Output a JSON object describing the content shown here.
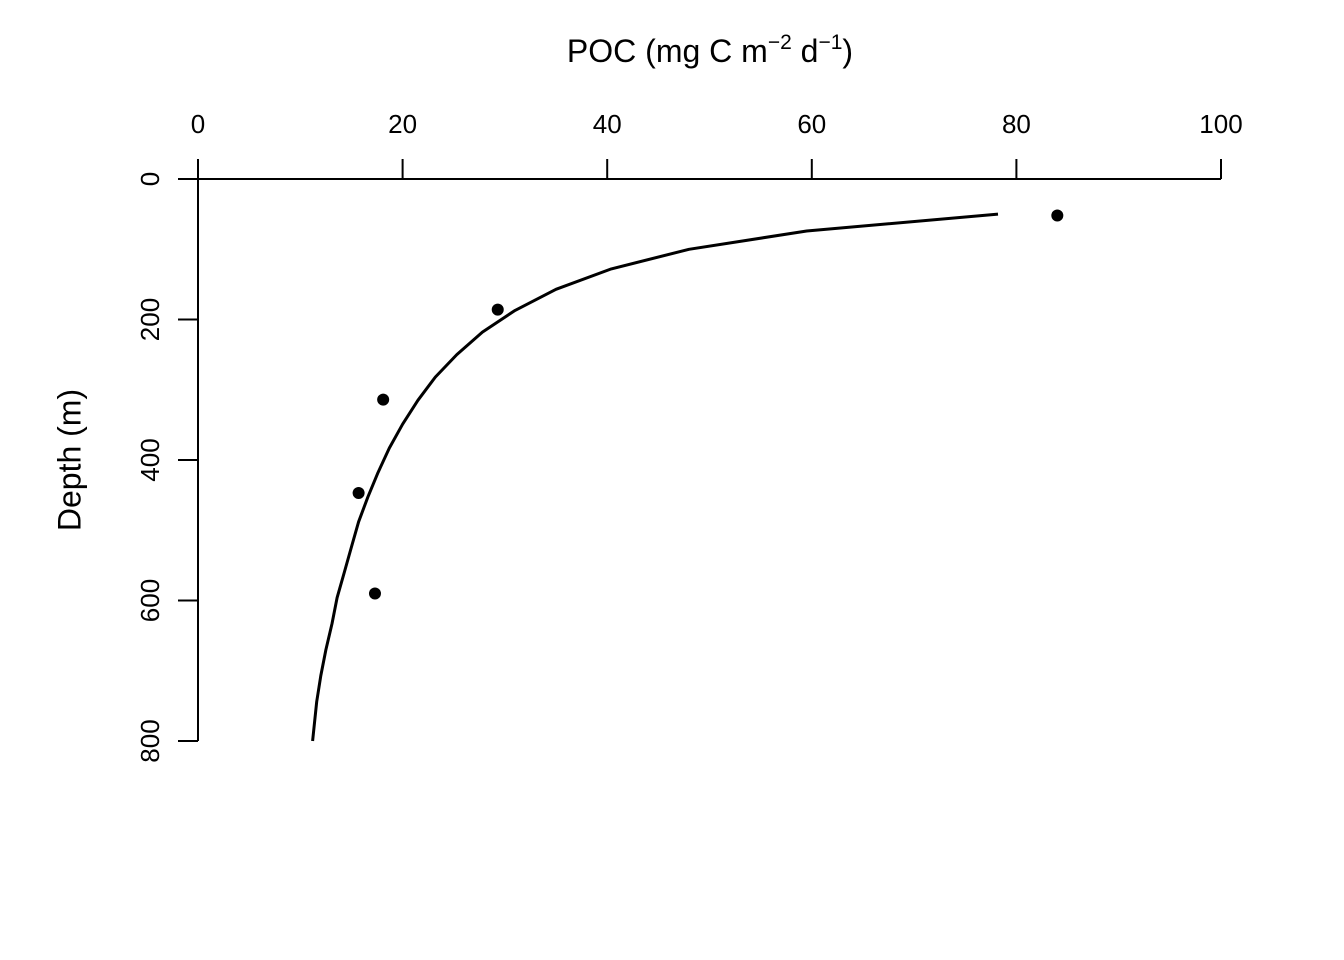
{
  "chart_data": {
    "type": "scatter",
    "xlabel": {
      "parts": [
        {
          "text": "POC (mg C m",
          "sup": false
        },
        {
          "text": "−2",
          "sup": true
        },
        {
          "text": " d",
          "sup": false
        },
        {
          "text": "−1",
          "sup": true
        },
        {
          "text": ")",
          "sup": false
        }
      ]
    },
    "ylabel": "Depth (m)",
    "x_axis": {
      "position": "top",
      "range": [
        0,
        100
      ],
      "ticks": [
        0,
        20,
        40,
        60,
        80,
        100
      ],
      "tick_labels": [
        "0",
        "20",
        "40",
        "60",
        "80",
        "100"
      ]
    },
    "y_axis": {
      "position": "left",
      "reversed": true,
      "range": [
        0,
        800
      ],
      "ticks": [
        0,
        200,
        400,
        600,
        800
      ],
      "tick_labels": [
        "0",
        "200",
        "400",
        "600",
        "800"
      ]
    },
    "grid": false,
    "legend": "none",
    "series": [
      {
        "kind": "points",
        "color": "#000000",
        "points": [
          {
            "x": 84.0,
            "y": 52
          },
          {
            "x": 29.3,
            "y": 186
          },
          {
            "x": 18.1,
            "y": 314
          },
          {
            "x": 15.7,
            "y": 447
          },
          {
            "x": 17.3,
            "y": 590
          }
        ]
      },
      {
        "kind": "fitted-curve",
        "color": "#000000",
        "model": "power law (Martin curve): POC = 78.2 * (depth / 50)^-0.70",
        "x": [
          78.2,
          59.5,
          48.0,
          40.4,
          35.0,
          31.0,
          27.8,
          25.3,
          23.2,
          21.5,
          20.0,
          18.7,
          17.6,
          16.6,
          15.7,
          15.0,
          14.3,
          13.6,
          13.1,
          12.5,
          12.0,
          11.6,
          11.2
        ],
        "y": [
          50,
          74,
          100,
          128,
          157,
          187,
          218,
          250,
          282,
          315,
          349,
          383,
          418,
          453,
          488,
          524,
          560,
          596,
          633,
          670,
          707,
          744,
          800
        ]
      }
    ]
  }
}
